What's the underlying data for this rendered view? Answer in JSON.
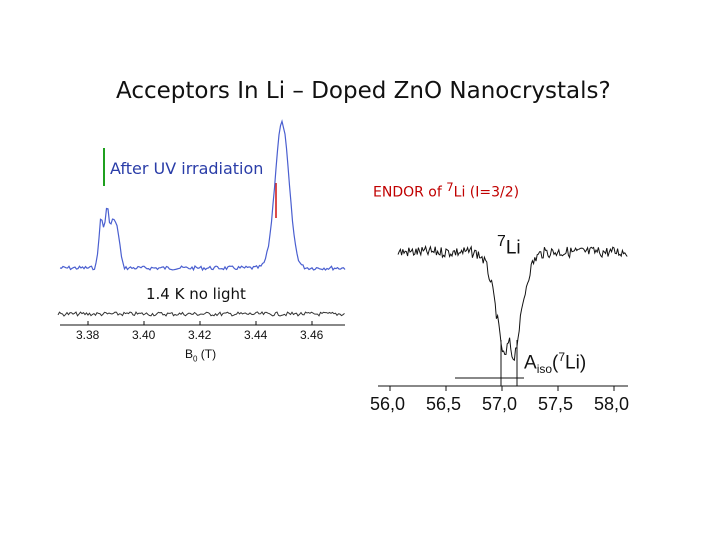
{
  "title": "Acceptors In Li – Doped ZnO Nanocrystals?",
  "left_panel": {
    "uv_label": "After UV irradiation",
    "no_light_label": "1.4 K no light",
    "x_axis_label_main": "B",
    "x_axis_label_sub": "0",
    "x_axis_label_unit": " (T)",
    "x_ticks": [
      "3.38",
      "3.40",
      "3.42",
      "3.44",
      "3.46"
    ],
    "colors": {
      "spectrum": "#4a5fd0",
      "marker_green": "#1fa01f",
      "marker_red": "#d01010"
    }
  },
  "right_panel": {
    "endor_prefix": "ENDOR of ",
    "endor_sup": "7",
    "endor_suffix": "Li (I=3/2)",
    "isotope_sup": "7",
    "isotope_main": "Li",
    "aiso_main": "A",
    "aiso_sub": "iso",
    "aiso_paren_open": "(",
    "aiso_sup": "7",
    "aiso_rest": "Li)",
    "x_ticks": [
      "56,0",
      "56,5",
      "57,0",
      "57,5",
      "58,0"
    ]
  }
}
